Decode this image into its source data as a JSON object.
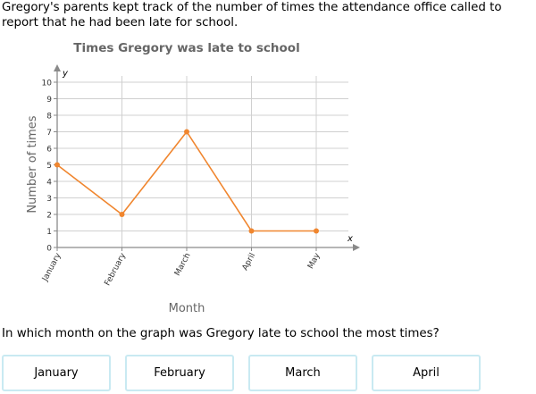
{
  "intro": "Gregory's parents kept track of the number of times the attendance office called to report that he had been late for school.",
  "question": "In which month on the graph was Gregory late to school the most times?",
  "choices": [
    "January",
    "February",
    "March",
    "April"
  ],
  "colors": {
    "line": "#f0862f",
    "grid": "#d0d0d0",
    "axis": "#8a8a8a",
    "choice_border": "#c9eaf2"
  },
  "chart_data": {
    "type": "line",
    "title": "Times Gregory was late to school",
    "xlabel": "Month",
    "ylabel": "Number of times",
    "x_axis_letter": "x",
    "y_axis_letter": "y",
    "categories": [
      "January",
      "February",
      "March",
      "April",
      "May"
    ],
    "values": [
      5,
      2,
      7,
      1,
      1
    ],
    "ylim": [
      0,
      10
    ],
    "yticks": [
      0,
      1,
      2,
      3,
      4,
      5,
      6,
      7,
      8,
      9,
      10
    ],
    "grid": true
  }
}
